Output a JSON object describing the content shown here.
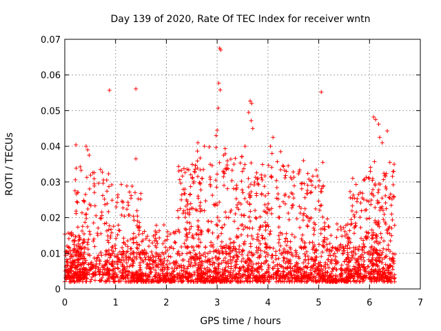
{
  "chart_data": {
    "type": "scatter",
    "title": "Day 139 of 2020, Rate Of TEC Index for receiver wntn",
    "xlabel": "GPS time / hours",
    "ylabel": "ROTI / TECUs",
    "xlim": [
      0,
      7
    ],
    "ylim": [
      0,
      0.07
    ],
    "xticks": [
      "0",
      "1",
      "2",
      "3",
      "4",
      "5",
      "6",
      "7"
    ],
    "yticks": [
      "0",
      "0.01",
      "0.02",
      "0.03",
      "0.04",
      "0.05",
      "0.06",
      "0.07"
    ],
    "grid": true,
    "marker": "+",
    "color": "#ff0000",
    "notable_points": [
      {
        "x": 0.88,
        "y": 0.0557
      },
      {
        "x": 1.4,
        "y": 0.0561
      },
      {
        "x": 3.05,
        "y": 0.0675
      },
      {
        "x": 3.07,
        "y": 0.067
      },
      {
        "x": 3.03,
        "y": 0.0577
      },
      {
        "x": 3.06,
        "y": 0.0558
      },
      {
        "x": 3.02,
        "y": 0.0507
      },
      {
        "x": 5.05,
        "y": 0.0552
      },
      {
        "x": 3.65,
        "y": 0.0527
      },
      {
        "x": 3.68,
        "y": 0.052
      },
      {
        "x": 3.62,
        "y": 0.0495
      },
      {
        "x": 3.67,
        "y": 0.0472
      },
      {
        "x": 3.7,
        "y": 0.045
      },
      {
        "x": 6.08,
        "y": 0.0482
      },
      {
        "x": 6.12,
        "y": 0.0475
      },
      {
        "x": 6.18,
        "y": 0.0462
      },
      {
        "x": 6.35,
        "y": 0.0443
      },
      {
        "x": 6.2,
        "y": 0.0425
      },
      {
        "x": 6.25,
        "y": 0.041
      },
      {
        "x": 0.22,
        "y": 0.0404
      },
      {
        "x": 0.42,
        "y": 0.04
      },
      {
        "x": 0.45,
        "y": 0.039
      },
      {
        "x": 0.48,
        "y": 0.0375
      },
      {
        "x": 2.62,
        "y": 0.041
      },
      {
        "x": 3.0,
        "y": 0.0445
      },
      {
        "x": 2.98,
        "y": 0.043
      },
      {
        "x": 4.1,
        "y": 0.0425
      },
      {
        "x": 4.05,
        "y": 0.04
      },
      {
        "x": 4.08,
        "y": 0.038
      },
      {
        "x": 3.55,
        "y": 0.04
      },
      {
        "x": 2.75,
        "y": 0.04
      },
      {
        "x": 4.25,
        "y": 0.0385
      },
      {
        "x": 4.7,
        "y": 0.036
      },
      {
        "x": 5.08,
        "y": 0.0355
      },
      {
        "x": 6.4,
        "y": 0.0355
      },
      {
        "x": 1.4,
        "y": 0.0365
      }
    ],
    "clusters": [
      {
        "x_range": [
          0.0,
          0.4
        ],
        "y_range": [
          0.003,
          0.016
        ],
        "count": 160
      },
      {
        "x_range": [
          0.2,
          0.9
        ],
        "y_range": [
          0.004,
          0.035
        ],
        "count": 180
      },
      {
        "x_range": [
          0.85,
          1.5
        ],
        "y_range": [
          0.003,
          0.03
        ],
        "count": 170
      },
      {
        "x_range": [
          1.4,
          2.2
        ],
        "y_range": [
          0.002,
          0.018
        ],
        "count": 200
      },
      {
        "x_range": [
          2.2,
          2.7
        ],
        "y_range": [
          0.003,
          0.035
        ],
        "count": 160
      },
      {
        "x_range": [
          2.6,
          3.2
        ],
        "y_range": [
          0.002,
          0.04
        ],
        "count": 200
      },
      {
        "x_range": [
          3.2,
          3.8
        ],
        "y_range": [
          0.003,
          0.038
        ],
        "count": 200
      },
      {
        "x_range": [
          3.8,
          4.4
        ],
        "y_range": [
          0.003,
          0.036
        ],
        "count": 190
      },
      {
        "x_range": [
          4.4,
          5.1
        ],
        "y_range": [
          0.003,
          0.034
        ],
        "count": 210
      },
      {
        "x_range": [
          5.1,
          5.6
        ],
        "y_range": [
          0.002,
          0.02
        ],
        "count": 150
      },
      {
        "x_range": [
          5.6,
          6.0
        ],
        "y_range": [
          0.003,
          0.032
        ],
        "count": 150
      },
      {
        "x_range": [
          6.0,
          6.5
        ],
        "y_range": [
          0.003,
          0.036
        ],
        "count": 220
      },
      {
        "x_range": [
          0.0,
          6.5
        ],
        "y_range": [
          0.002,
          0.012
        ],
        "count": 900
      }
    ]
  }
}
